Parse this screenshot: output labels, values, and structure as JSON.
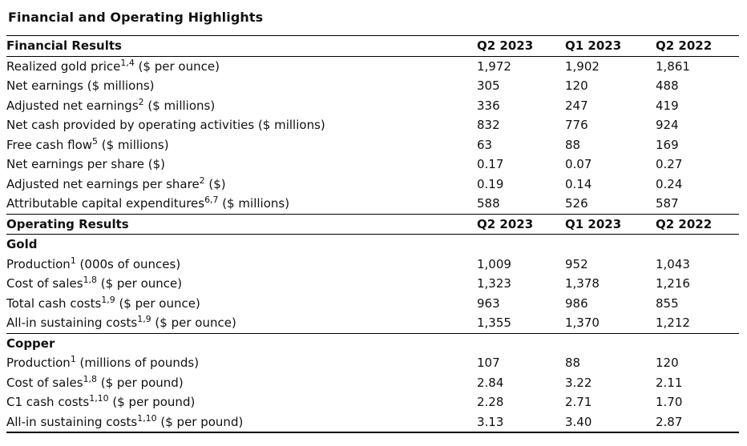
{
  "page": {
    "title": "Financial and Operating Highlights"
  },
  "colors": {
    "text": "#111111",
    "rule": "#000000",
    "background": "#ffffff"
  },
  "table": {
    "columns": [
      "Q2 2023",
      "Q1 2023",
      "Q2 2022"
    ],
    "groups": [
      {
        "header": "Financial Results",
        "rows": [
          {
            "label": "Realized gold price",
            "sup": "1,4",
            "unit": " ($ per ounce)",
            "values": [
              "1,972",
              "1,902",
              "1,861"
            ]
          },
          {
            "label": "Net earnings",
            "sup": "",
            "unit": " ($ millions)",
            "values": [
              "305",
              "120",
              "488"
            ]
          },
          {
            "label": "Adjusted net earnings",
            "sup": "2",
            "unit": " ($ millions)",
            "values": [
              "336",
              "247",
              "419"
            ]
          },
          {
            "label": "Net cash provided by operating activities",
            "sup": "",
            "unit": " ($ millions)",
            "values": [
              "832",
              "776",
              "924"
            ]
          },
          {
            "label": "Free cash flow",
            "sup": "5",
            "unit": " ($ millions)",
            "values": [
              "63",
              "88",
              "169"
            ]
          },
          {
            "label": "Net earnings per share",
            "sup": "",
            "unit": " ($)",
            "values": [
              "0.17",
              "0.07",
              "0.27"
            ]
          },
          {
            "label": "Adjusted net earnings per share",
            "sup": "2",
            "unit": " ($)",
            "values": [
              "0.19",
              "0.14",
              "0.24"
            ]
          },
          {
            "label": "Attributable capital expenditures",
            "sup": "6,7",
            "unit": " ($ millions)",
            "values": [
              "588",
              "526",
              "587"
            ]
          }
        ]
      },
      {
        "header": "Operating Results",
        "subgroups": [
          {
            "name": "Gold",
            "rule_above": false,
            "rows": [
              {
                "label": "Production",
                "sup": "1",
                "unit": " (000s of ounces)",
                "values": [
                  "1,009",
                  "952",
                  "1,043"
                ]
              },
              {
                "label": "Cost of sales",
                "sup": "1,8",
                "unit": " ($ per ounce)",
                "values": [
                  "1,323",
                  "1,378",
                  "1,216"
                ]
              },
              {
                "label": "Total cash costs",
                "sup": "1,9",
                "unit": " ($ per ounce)",
                "values": [
                  "963",
                  "986",
                  "855"
                ]
              },
              {
                "label": "All-in sustaining costs",
                "sup": "1,9",
                "unit": " ($ per ounce)",
                "values": [
                  "1,355",
                  "1,370",
                  "1,212"
                ]
              }
            ]
          },
          {
            "name": "Copper",
            "rule_above": true,
            "rows": [
              {
                "label": "Production",
                "sup": "1",
                "unit": " (millions of pounds)",
                "values": [
                  "107",
                  "88",
                  "120"
                ]
              },
              {
                "label": "Cost of sales",
                "sup": "1,8",
                "unit": " ($ per pound)",
                "values": [
                  "2.84",
                  "3.22",
                  "2.11"
                ]
              },
              {
                "label": "C1 cash costs",
                "sup": "1,10",
                "unit": " ($ per pound)",
                "values": [
                  "2.28",
                  "2.71",
                  "1.70"
                ]
              },
              {
                "label": "All-in sustaining costs",
                "sup": "1,10",
                "unit": " ($ per pound)",
                "values": [
                  "3.13",
                  "3.40",
                  "2.87"
                ]
              }
            ]
          }
        ]
      }
    ]
  }
}
